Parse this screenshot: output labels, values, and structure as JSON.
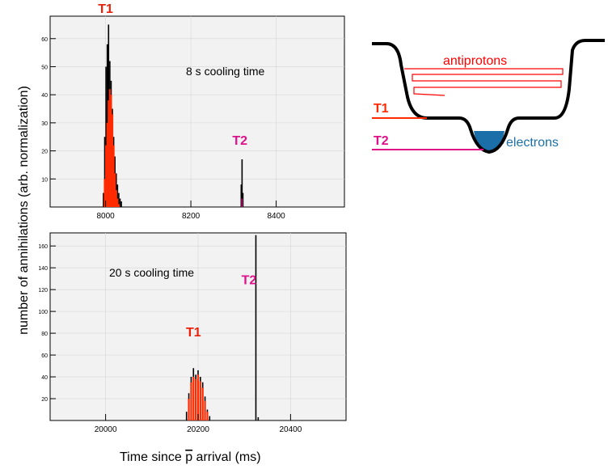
{
  "figure": {
    "ylabel": "number of annihilations (arb. normalization)",
    "xlabel_prefix": "Time since ",
    "xlabel_symbol": "p",
    "xlabel_suffix": " arrival (ms)"
  },
  "chart_data": [
    {
      "type": "bar",
      "annotation": "8 s cooling time",
      "xlim": [
        7870,
        8560
      ],
      "ylim": [
        0,
        68
      ],
      "xticks": [
        8000,
        8200,
        8400
      ],
      "yticks": [
        10,
        20,
        30,
        40,
        50,
        60
      ],
      "peak_labels": [
        {
          "text": "T1",
          "color": "#e8220a",
          "x": 8000,
          "y": 68
        },
        {
          "text": "T2",
          "color": "#e0108a",
          "x": 8315,
          "y": 21
        }
      ],
      "total_series": {
        "x": [
          7995,
          7998,
          8001,
          8004,
          8007,
          8010,
          8013,
          8016,
          8019,
          8022,
          8025,
          8028,
          8031,
          8034,
          8037,
          8318,
          8320,
          8322
        ],
        "values": [
          5,
          25,
          50,
          58,
          65,
          52,
          45,
          35,
          25,
          18,
          12,
          8,
          5,
          3,
          2,
          8,
          17,
          5
        ],
        "color": "#000000"
      },
      "t1_series": {
        "x": [
          7998,
          8001,
          8004,
          8007,
          8010,
          8013,
          8016,
          8019,
          8022,
          8025,
          8028,
          8031
        ],
        "values": [
          10,
          22,
          30,
          38,
          42,
          40,
          33,
          22,
          12,
          6,
          3,
          1
        ],
        "color": "#ff2a00"
      },
      "t2_series": {
        "x": [
          8320
        ],
        "values": [
          3
        ],
        "color": "#d0107f"
      }
    },
    {
      "type": "bar",
      "annotation": "20 s cooling time",
      "xlim": [
        19880,
        20520
      ],
      "ylim": [
        0,
        172
      ],
      "xticks": [
        20000,
        20200,
        20400
      ],
      "yticks": [
        20,
        40,
        60,
        80,
        100,
        120,
        140,
        160
      ],
      "peak_labels": [
        {
          "text": "T1",
          "color": "#e8220a",
          "x": 20190,
          "y": 74
        },
        {
          "text": "T2",
          "color": "#e0108a",
          "x": 20310,
          "y": 122
        }
      ],
      "total_series": {
        "x": [
          20175,
          20180,
          20185,
          20190,
          20195,
          20200,
          20205,
          20210,
          20215,
          20220,
          20225,
          20325,
          20330
        ],
        "values": [
          8,
          25,
          40,
          48,
          42,
          46,
          40,
          35,
          22,
          10,
          4,
          170,
          3
        ],
        "color": "#000000"
      },
      "t1_series": {
        "x": [
          20180,
          20185,
          20190,
          20195,
          20200,
          20205,
          20210,
          20215,
          20220
        ],
        "values": [
          20,
          35,
          40,
          38,
          42,
          36,
          30,
          18,
          8
        ],
        "color": "#ff2a00"
      }
    }
  ],
  "diagram": {
    "antiprotons_label": "antiprotons",
    "electrons_label": "electrons",
    "t1_label": "T1",
    "t2_label": "T2",
    "colors": {
      "antiprotons": "#ff0000",
      "t1": "#ff2a00",
      "t2": "#e0108a",
      "electrons": "#1b6fa8"
    }
  }
}
